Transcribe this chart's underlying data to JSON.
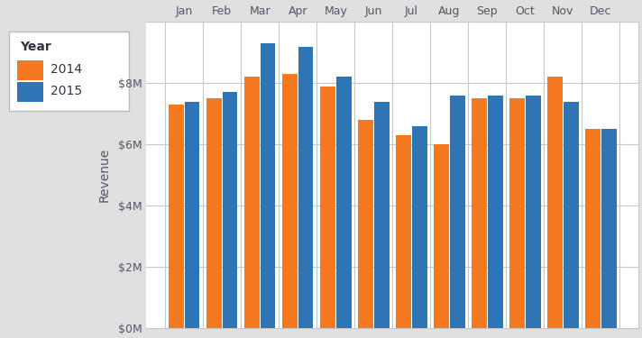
{
  "months": [
    "Jan",
    "Feb",
    "Mar",
    "Apr",
    "May",
    "Jun",
    "Jul",
    "Aug",
    "Sep",
    "Oct",
    "Nov",
    "Dec"
  ],
  "values_2014": [
    7.3,
    7.5,
    8.2,
    8.3,
    7.9,
    6.8,
    6.3,
    6.0,
    7.5,
    7.5,
    8.2,
    6.5
  ],
  "values_2015": [
    7.4,
    7.7,
    9.3,
    9.2,
    8.2,
    7.4,
    6.6,
    7.6,
    7.6,
    7.6,
    7.4,
    6.5
  ],
  "color_2014": "#f47920",
  "color_2015": "#2e75b6",
  "ylabel": "Revenue",
  "legend_title": "Year",
  "legend_labels": [
    "2014",
    "2015"
  ],
  "ylim": [
    0,
    10
  ],
  "ytick_values": [
    0,
    2,
    4,
    6,
    8
  ],
  "background_color": "#e0e0e0",
  "plot_background": "#ffffff",
  "grid_color": "#c8c8c8",
  "legend_bg": "#ffffff",
  "legend_edge": "#cccccc",
  "tick_label_color": "#555566",
  "ylabel_color": "#555566"
}
